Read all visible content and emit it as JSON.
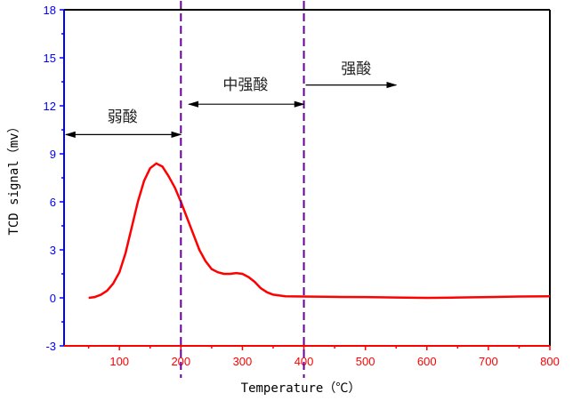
{
  "chart_data": {
    "type": "line",
    "xlabel": "Temperature（℃）",
    "ylabel": "TCD signal（mv）",
    "xlim": [
      10,
      800
    ],
    "ylim": [
      -3,
      18
    ],
    "xticks": [
      100,
      200,
      300,
      400,
      500,
      600,
      700,
      800
    ],
    "yticks": [
      -3,
      0,
      3,
      6,
      9,
      12,
      15,
      18
    ],
    "grid": false,
    "colors": {
      "line": "#ff0000",
      "y_axis": "#0000ff",
      "x_axis": "#ff0000",
      "dividers": "#660099"
    },
    "series": [
      {
        "x": [
          50,
          60,
          70,
          80,
          90,
          100,
          110,
          120,
          130,
          140,
          150,
          160,
          170,
          180,
          190,
          200,
          210,
          220,
          230,
          240,
          250,
          260,
          270,
          280,
          290,
          300,
          310,
          320,
          330,
          340,
          350,
          370,
          400,
          450,
          500,
          550,
          600,
          650,
          700,
          750,
          800
        ],
        "y": [
          0,
          0.05,
          0.2,
          0.45,
          0.9,
          1.6,
          2.8,
          4.4,
          6.0,
          7.3,
          8.1,
          8.4,
          8.2,
          7.6,
          6.9,
          6.0,
          5.0,
          4.0,
          3.0,
          2.3,
          1.8,
          1.6,
          1.5,
          1.5,
          1.55,
          1.5,
          1.3,
          1.0,
          0.6,
          0.35,
          0.2,
          0.1,
          0.08,
          0.06,
          0.05,
          0.02,
          0.0,
          0.02,
          0.05,
          0.08,
          0.1
        ]
      }
    ],
    "vlines": [
      200,
      400
    ],
    "annotations": [
      {
        "text": "弱酸",
        "x": [
          10,
          200
        ],
        "y": 10.2,
        "label_x": 105,
        "label_y": 11.0,
        "arrows": "both"
      },
      {
        "text": "中强酸",
        "x": [
          210,
          400
        ],
        "y": 12.1,
        "label_x": 305,
        "label_y": 13.0,
        "arrows": "both"
      },
      {
        "text": "强酸",
        "x": [
          400,
          550
        ],
        "y": 13.3,
        "label_x": 485,
        "label_y": 14.0,
        "arrows": "end"
      }
    ]
  }
}
